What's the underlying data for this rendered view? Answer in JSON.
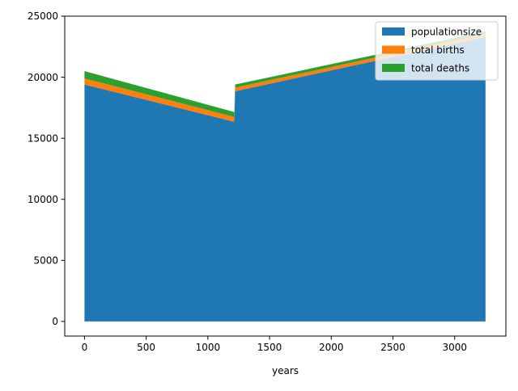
{
  "chart_data": {
    "type": "area",
    "stacked": true,
    "title": "",
    "xlabel": "years",
    "ylabel": "",
    "xlim": [
      -160,
      3415
    ],
    "ylim": [
      -1200,
      25000
    ],
    "xticks": [
      0,
      500,
      1000,
      1500,
      2000,
      2500,
      3000
    ],
    "yticks": [
      0,
      5000,
      10000,
      15000,
      20000,
      25000
    ],
    "grid": false,
    "legend_position": "top-right",
    "x": [
      0,
      1214,
      1221,
      3250
    ],
    "series": [
      {
        "name": "populationsize",
        "color": "#1f77b4",
        "values": [
          19400,
          16350,
          18850,
          23300
        ]
      },
      {
        "name": "total births",
        "color": "#ff7f0e",
        "values": [
          500,
          400,
          300,
          250
        ]
      },
      {
        "name": "total deaths",
        "color": "#2ca02c",
        "values": [
          600,
          400,
          250,
          200
        ]
      }
    ]
  }
}
